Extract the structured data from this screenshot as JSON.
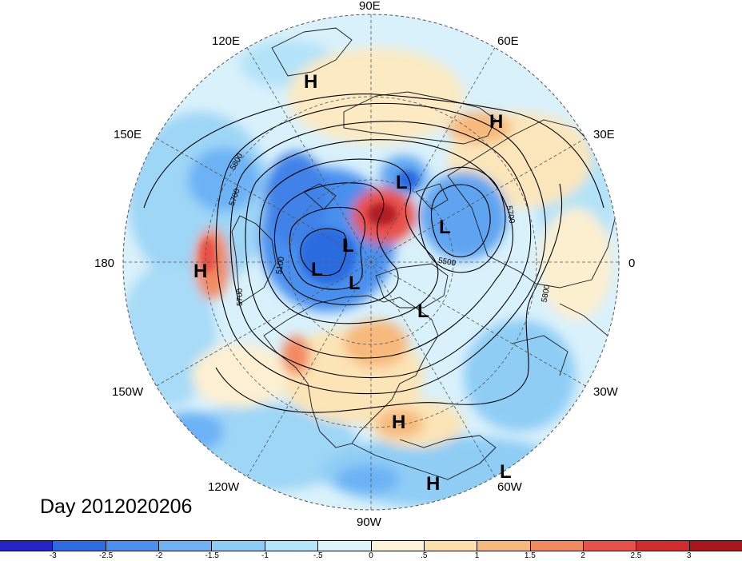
{
  "map": {
    "projection": "polar stereographic (north pole)",
    "longitude_labels": [
      "90E",
      "60E",
      "30E",
      "0",
      "30W",
      "60W",
      "90W",
      "120W",
      "150W",
      "180",
      "150E",
      "120E"
    ],
    "pressure_centers": [
      {
        "type": "H",
        "label": "H"
      },
      {
        "type": "H",
        "label": "H"
      },
      {
        "type": "H",
        "label": "H"
      },
      {
        "type": "H",
        "label": "H"
      },
      {
        "type": "H",
        "label": "H"
      },
      {
        "type": "L",
        "label": "L"
      },
      {
        "type": "L",
        "label": "L"
      },
      {
        "type": "L",
        "label": "L"
      },
      {
        "type": "L",
        "label": "L"
      },
      {
        "type": "L",
        "label": "L"
      },
      {
        "type": "L",
        "label": "L"
      },
      {
        "type": "L",
        "label": "L"
      }
    ],
    "contour_labels": [
      "5800",
      "5700",
      "5100",
      "5700",
      "5700",
      "5500",
      "5800"
    ],
    "colors": {
      "land_outline": "#1a1a1a",
      "grid_line": "#555555",
      "contour_line": "#000000"
    }
  },
  "date_label": "Day 2012020206",
  "colorbar": {
    "tick_labels": [
      "-3",
      "-2.5",
      "-2",
      "-1.5",
      "-1",
      "-.5",
      "0",
      ".5",
      "1",
      "1.5",
      "2",
      "2.5",
      "3"
    ],
    "colors": [
      "#2323c8",
      "#2c6ce0",
      "#4a90ee",
      "#6cb2f5",
      "#8ccdf8",
      "#b3e6fb",
      "#ddf4fd",
      "#fdf4d8",
      "#fbe0a8",
      "#f7b97c",
      "#f28a60",
      "#e85149",
      "#d12a2f",
      "#a8151c"
    ]
  }
}
